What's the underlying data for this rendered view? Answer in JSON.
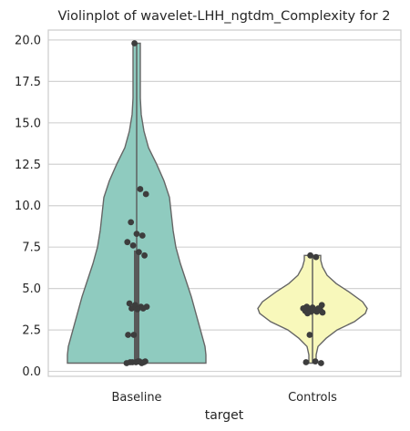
{
  "chart_data": {
    "type": "violin",
    "title": "Violinplot of wavelet-LHH_ngtdm_Complexity for 2",
    "xlabel": "target",
    "ylabel": "",
    "ylim": [
      -0.3,
      20.6
    ],
    "yticks": [
      "0.0",
      "2.5",
      "5.0",
      "7.5",
      "10.0",
      "12.5",
      "15.0",
      "17.5",
      "20.0"
    ],
    "grid": "horizontal",
    "categories": [
      "Baseline",
      "Controls"
    ],
    "colors": {
      "Baseline": "#8fcbbf",
      "Controls": "#f8f8bb",
      "violin_edge": "#666666",
      "points": "#3d3d3d",
      "grid": "#d3d3d3",
      "spine": "#cccccc"
    },
    "series": [
      {
        "category": "Baseline",
        "min": 0.5,
        "max": 19.8,
        "q1": 0.55,
        "median": 3.8,
        "q3": 7.3,
        "points": [
          19.8,
          11.0,
          10.7,
          9.0,
          8.3,
          8.2,
          7.8,
          7.6,
          7.2,
          7.0,
          4.1,
          4.0,
          3.9,
          3.9,
          3.8,
          3.75,
          3.8,
          2.2,
          2.2,
          0.6,
          0.6,
          0.55,
          0.55,
          0.5,
          0.5,
          0.55,
          0.6,
          0.55
        ]
      },
      {
        "category": "Controls",
        "min": 0.5,
        "max": 7.0,
        "q1": 3.55,
        "median": 3.7,
        "q3": 3.85,
        "points": [
          7.0,
          6.9,
          4.0,
          3.9,
          3.85,
          3.8,
          3.8,
          3.75,
          3.7,
          3.7,
          3.65,
          3.6,
          3.6,
          3.55,
          3.5,
          3.7,
          3.75,
          3.8,
          2.2,
          0.6,
          0.5,
          0.55
        ]
      }
    ]
  }
}
